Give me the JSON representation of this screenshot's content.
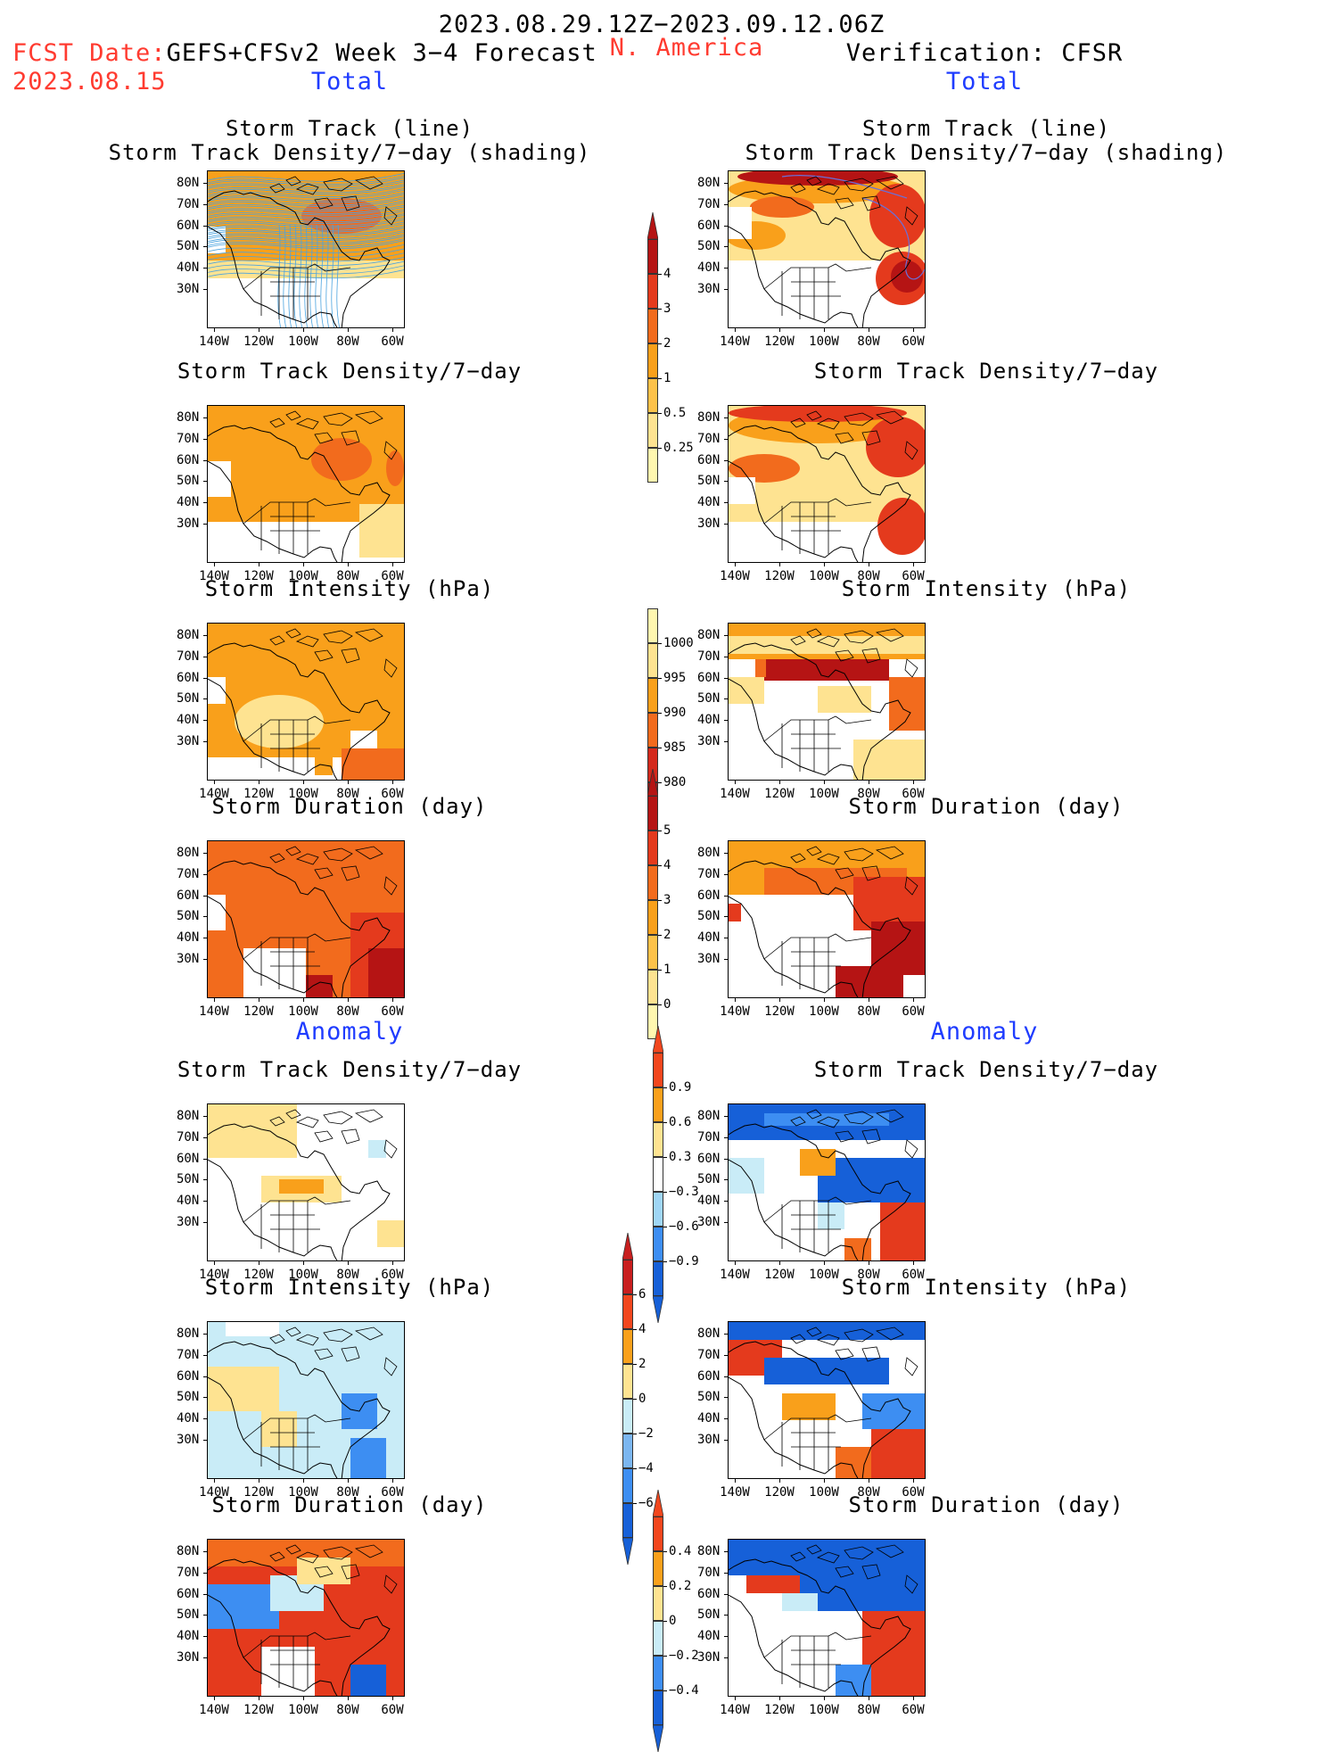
{
  "header": {
    "date_range": "2023.08.29.12Z−2023.09.12.06Z",
    "fcst_prefix": "FCST Date:",
    "fcst_model": "GEFS+CFSv2 Week 3−4 Forecast",
    "fcst_date": "2023.08.15",
    "region": "N. America",
    "verification": "Verification: CFSR"
  },
  "sections": {
    "total_left": "Total",
    "total_right": "Total",
    "anomaly_left": "Anomaly",
    "anomaly_right": "Anomaly"
  },
  "axes": {
    "lat_labels": [
      "80N",
      "70N",
      "60N",
      "50N",
      "40N",
      "30N"
    ],
    "lon_labels": [
      "140W",
      "120W",
      "100W",
      "80W",
      "60W"
    ]
  },
  "panels": {
    "total_track": {
      "title1": "Storm Track (line)",
      "title2": "Storm Track Density/7−day (shading)"
    },
    "total_density": {
      "title": "Storm Track Density/7−day"
    },
    "total_intensity": {
      "title": "Storm Intensity (hPa)"
    },
    "total_duration": {
      "title": "Storm Duration (day)"
    },
    "anom_density": {
      "title": "Storm Track Density/7−day"
    },
    "anom_intensity": {
      "title": "Storm Intensity (hPa)"
    },
    "anom_duration": {
      "title": "Storm Duration (day)"
    }
  },
  "colorbars": {
    "density": {
      "labels": [
        "4",
        "3",
        "2",
        "1",
        "0.5",
        "0.25"
      ],
      "colors": [
        "#fff7b0",
        "#fee391",
        "#fdc24a",
        "#f9a01b",
        "#f26b1d",
        "#e43a1d",
        "#b51414"
      ]
    },
    "intensity": {
      "labels": [
        "1000",
        "995",
        "990",
        "985",
        "980"
      ],
      "colors": [
        "#fff7b0",
        "#fee391",
        "#f9a01b",
        "#f26b1d",
        "#d4291c",
        "#b51414"
      ]
    },
    "duration": {
      "labels": [
        "5",
        "4",
        "3",
        "2",
        "1",
        "0"
      ],
      "colors": [
        "#fff7b0",
        "#fee391",
        "#fdc24a",
        "#f9a01b",
        "#f26b1d",
        "#e43a1d",
        "#b51414"
      ]
    },
    "anom_density": {
      "labels": [
        "0.9",
        "0.6",
        "0.3",
        "−0.3",
        "−0.6",
        "−0.9"
      ],
      "colors": [
        "#1660d8",
        "#3d8ef2",
        "#9fd6f5",
        "#ffffff",
        "#fee391",
        "#f9a01b",
        "#f2461d"
      ]
    },
    "anom_intensity": {
      "labels": [
        "6",
        "4",
        "2",
        "0",
        "−2",
        "−4",
        "−6"
      ],
      "colors": [
        "#1660d8",
        "#3d8ef2",
        "#7bb6f0",
        "#c9ecf7",
        "#fee391",
        "#f9a01b",
        "#f2461d",
        "#c81e1e"
      ]
    },
    "anom_duration": {
      "labels": [
        "0.4",
        "0.2",
        "0",
        "−0.2",
        "−0.4"
      ],
      "colors": [
        "#1660d8",
        "#3d8ef2",
        "#c9ecf7",
        "#fee391",
        "#f9a01b",
        "#f2461d"
      ]
    }
  },
  "palette": {
    "warm_light": "#fee391",
    "warm_mid": "#f9a01b",
    "warm_orange": "#f26b1d",
    "warm_red": "#e43a1d",
    "warm_dark": "#b51414",
    "cool_light": "#c9ecf7",
    "cool_mid": "#3d8ef2",
    "cool_dark": "#1660d8",
    "track_line_forecast": "#4aa3df",
    "track_line_observed": "#6a6fd8"
  }
}
